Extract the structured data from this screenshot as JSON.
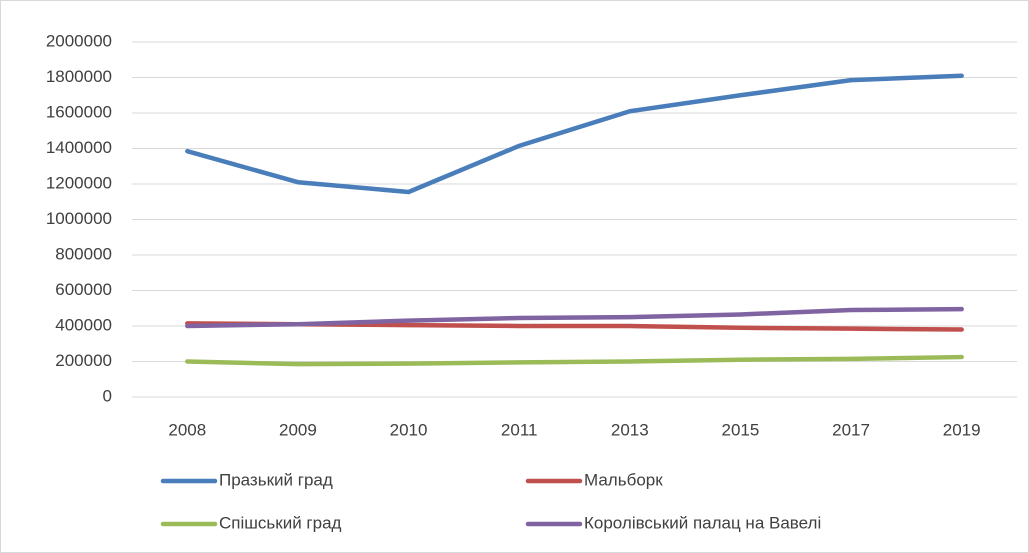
{
  "chart_data": {
    "type": "line",
    "categories": [
      "2008",
      "2009",
      "2010",
      "2011",
      "2013",
      "2015",
      "2017",
      "2019"
    ],
    "series": [
      {
        "name": "Празький град",
        "color": "#4a7ebb",
        "values": [
          1385000,
          1210000,
          1155000,
          1415000,
          1610000,
          1700000,
          1785000,
          1810000
        ]
      },
      {
        "name": "Мальборк",
        "color": "#c0504d",
        "values": [
          415000,
          410000,
          405000,
          400000,
          400000,
          390000,
          385000,
          380000
        ]
      },
      {
        "name": "Спішський град",
        "color": "#9bbb59",
        "values": [
          200000,
          185000,
          188000,
          195000,
          200000,
          210000,
          215000,
          225000
        ]
      },
      {
        "name": "Королівський палац на Вавелі",
        "color": "#8064a2",
        "values": [
          400000,
          410000,
          430000,
          445000,
          450000,
          465000,
          490000,
          495000
        ]
      }
    ],
    "ylim": [
      0,
      2000000
    ],
    "yticks": [
      0,
      200000,
      400000,
      600000,
      800000,
      1000000,
      1200000,
      1400000,
      1600000,
      1800000,
      2000000
    ],
    "grid": true,
    "legend": "bottom"
  }
}
